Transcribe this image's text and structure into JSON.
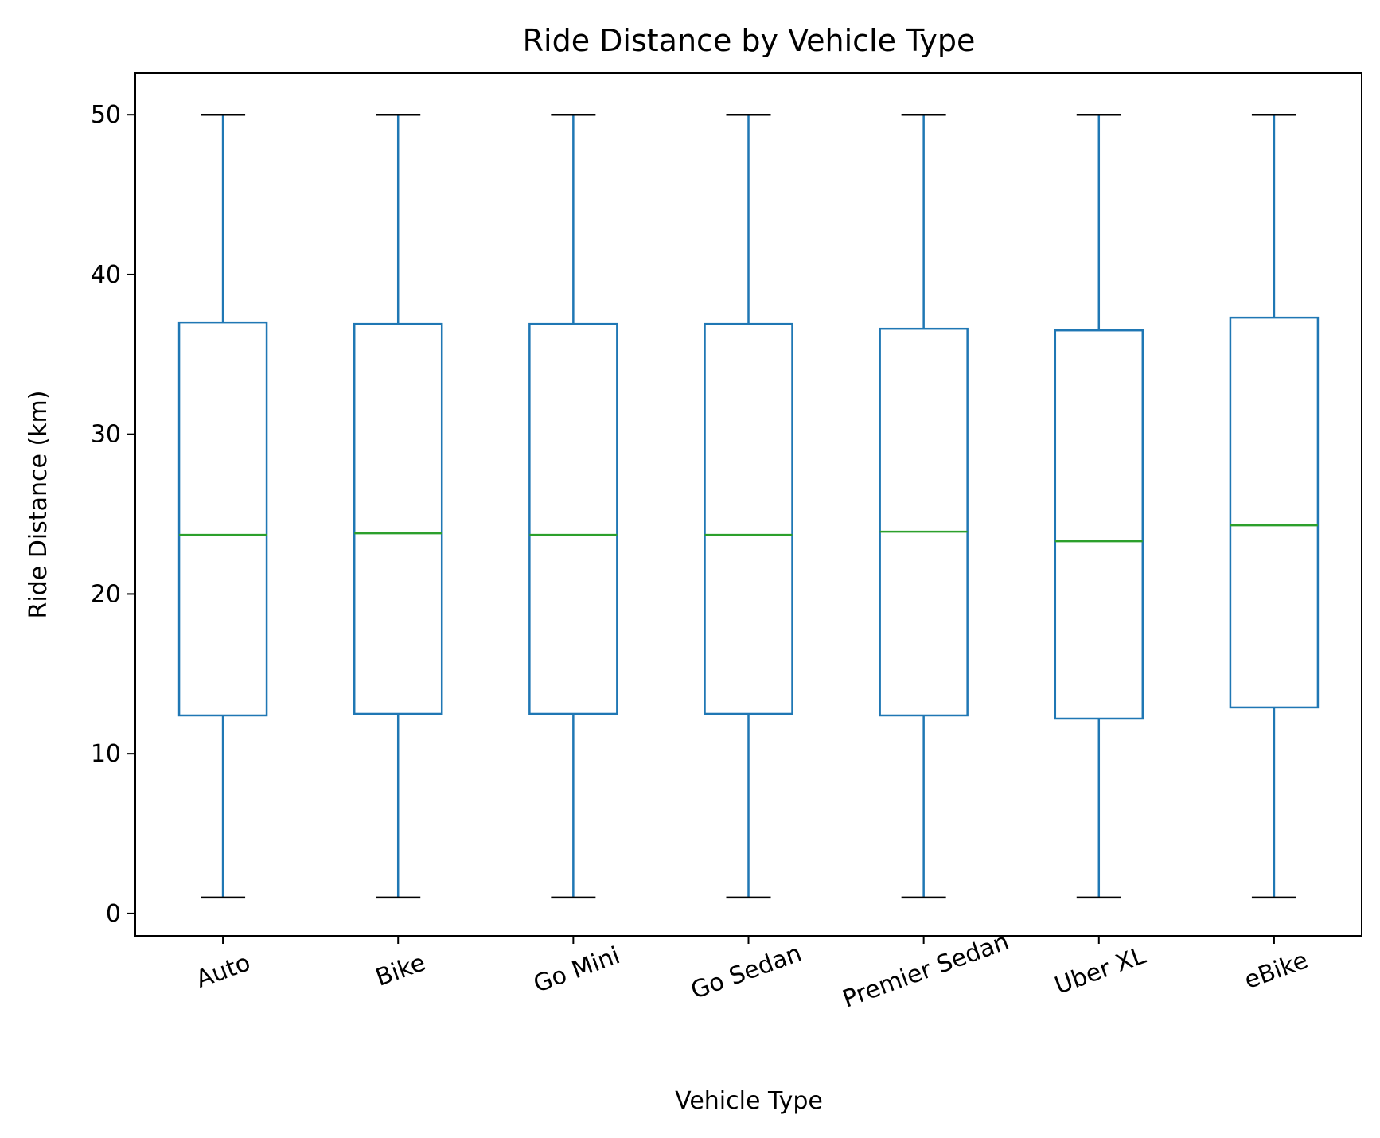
{
  "chart_data": {
    "type": "box",
    "title": "Ride Distance by Vehicle Type",
    "xlabel": "Vehicle Type",
    "ylabel": "Ride Distance (km)",
    "ylim": [
      -1.4,
      52.6
    ],
    "yticks": [
      0,
      10,
      20,
      30,
      40,
      50
    ],
    "grid": false,
    "legend": "none",
    "categories": [
      "Auto",
      "Bike",
      "Go Mini",
      "Go Sedan",
      "Premier Sedan",
      "Uber XL",
      "eBike"
    ],
    "boxes": [
      {
        "label": "Auto",
        "whisker_low": 1.0,
        "q1": 12.4,
        "median": 23.7,
        "q3": 37.0,
        "whisker_high": 50.0
      },
      {
        "label": "Bike",
        "whisker_low": 1.0,
        "q1": 12.5,
        "median": 23.8,
        "q3": 36.9,
        "whisker_high": 50.0
      },
      {
        "label": "Go Mini",
        "whisker_low": 1.0,
        "q1": 12.5,
        "median": 23.7,
        "q3": 36.9,
        "whisker_high": 50.0
      },
      {
        "label": "Go Sedan",
        "whisker_low": 1.0,
        "q1": 12.5,
        "median": 23.7,
        "q3": 36.9,
        "whisker_high": 50.0
      },
      {
        "label": "Premier Sedan",
        "whisker_low": 1.0,
        "q1": 12.4,
        "median": 23.9,
        "q3": 36.6,
        "whisker_high": 50.0
      },
      {
        "label": "Uber XL",
        "whisker_low": 1.0,
        "q1": 12.2,
        "median": 23.3,
        "q3": 36.5,
        "whisker_high": 50.0
      },
      {
        "label": "eBike",
        "whisker_low": 1.0,
        "q1": 12.9,
        "median": 24.3,
        "q3": 37.3,
        "whisker_high": 50.0
      }
    ],
    "colors": {
      "box": "#1f77b4",
      "median": "#2ca02c",
      "caps": "#000000"
    }
  }
}
